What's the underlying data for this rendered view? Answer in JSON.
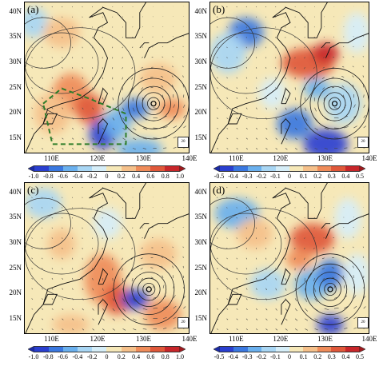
{
  "chart_data": [
    {
      "type": "heatmap",
      "panel_label": "(a)",
      "xticks": [
        "110E",
        "120E",
        "130E",
        "140E"
      ],
      "yticks": [
        "40N",
        "35N",
        "30N",
        "25N",
        "20N",
        "15N"
      ],
      "xlim": [
        104,
        140
      ],
      "ylim": [
        12,
        42
      ],
      "colorbar_ticks": [
        "-1.0",
        "-0.8",
        "-0.6",
        "-0.4",
        "-0.2",
        "0",
        "0.2",
        "0.4",
        "0.6",
        "0.8",
        "1.0"
      ],
      "colorbar_range": [
        -1.0,
        1.0
      ],
      "vector_reference": "20",
      "typhoon_center": [
        132,
        22
      ],
      "dashed_box": true
    },
    {
      "type": "heatmap",
      "panel_label": "(b)",
      "xticks": [
        "110E",
        "120E",
        "130E",
        "140E"
      ],
      "yticks": [
        "40N",
        "35N",
        "30N",
        "25N",
        "20N",
        "15N"
      ],
      "xlim": [
        104,
        140
      ],
      "ylim": [
        12,
        42
      ],
      "colorbar_ticks": [
        "-0.5",
        "-0.4",
        "-0.3",
        "-0.2",
        "-0.1",
        "0",
        "0.1",
        "0.2",
        "0.3",
        "0.4",
        "0.5"
      ],
      "colorbar_range": [
        -0.5,
        0.5
      ],
      "vector_reference": "20",
      "typhoon_center": [
        132,
        22
      ],
      "dashed_box": false
    },
    {
      "type": "heatmap",
      "panel_label": "(c)",
      "xticks": [
        "110E",
        "120E",
        "130E",
        "140E"
      ],
      "yticks": [
        "40N",
        "35N",
        "30N",
        "25N",
        "20N",
        "15N"
      ],
      "xlim": [
        104,
        140
      ],
      "ylim": [
        12,
        42
      ],
      "colorbar_ticks": [
        "-1.0",
        "-0.8",
        "-0.6",
        "-0.4",
        "-0.2",
        "0",
        "0.2",
        "0.4",
        "0.6",
        "0.8",
        "1.0"
      ],
      "colorbar_range": [
        -1.0,
        1.0
      ],
      "vector_reference": "20",
      "typhoon_center": [
        131,
        21
      ],
      "dashed_box": false
    },
    {
      "type": "heatmap",
      "panel_label": "(d)",
      "xticks": [
        "110E",
        "120E",
        "130E",
        "140E"
      ],
      "yticks": [
        "40N",
        "35N",
        "30N",
        "25N",
        "20N",
        "15N"
      ],
      "xlim": [
        104,
        140
      ],
      "ylim": [
        12,
        42
      ],
      "colorbar_ticks": [
        "-0.5",
        "-0.4",
        "-0.3",
        "-0.2",
        "-0.1",
        "0",
        "0.1",
        "0.2",
        "0.3",
        "0.4",
        "0.5"
      ],
      "colorbar_range": [
        -0.5,
        0.5
      ],
      "vector_reference": "20",
      "typhoon_center": [
        131,
        21
      ],
      "dashed_box": false
    }
  ],
  "colorbar_colors": [
    "#2a3fd0",
    "#3a78e0",
    "#6ab0ee",
    "#a8d6f4",
    "#d6eef8",
    "#f6e8b8",
    "#f5c08a",
    "#ef8c5a",
    "#e0583a",
    "#c8262a"
  ],
  "land_color": "#f1dfae"
}
